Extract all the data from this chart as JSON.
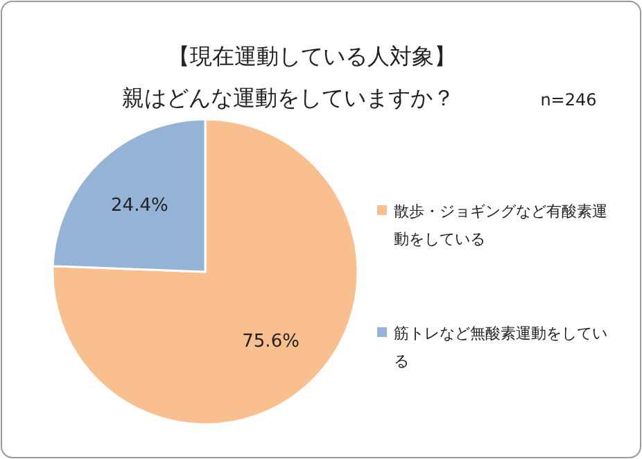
{
  "chart_data": {
    "type": "pie",
    "title": "【現在運動している人対象】",
    "subtitle": "親はどんな運動をしていますか？",
    "annotations": [
      "n=246"
    ],
    "categories": [
      "散歩・ジョギングなど有酸素運動をしている",
      "筋トレなど無酸素運動をしている"
    ],
    "values": [
      75.6,
      24.4
    ],
    "value_labels": [
      "75.6%",
      "24.4%"
    ],
    "colors": [
      "#f9bf8f",
      "#95b3d7"
    ],
    "legend": "right"
  }
}
